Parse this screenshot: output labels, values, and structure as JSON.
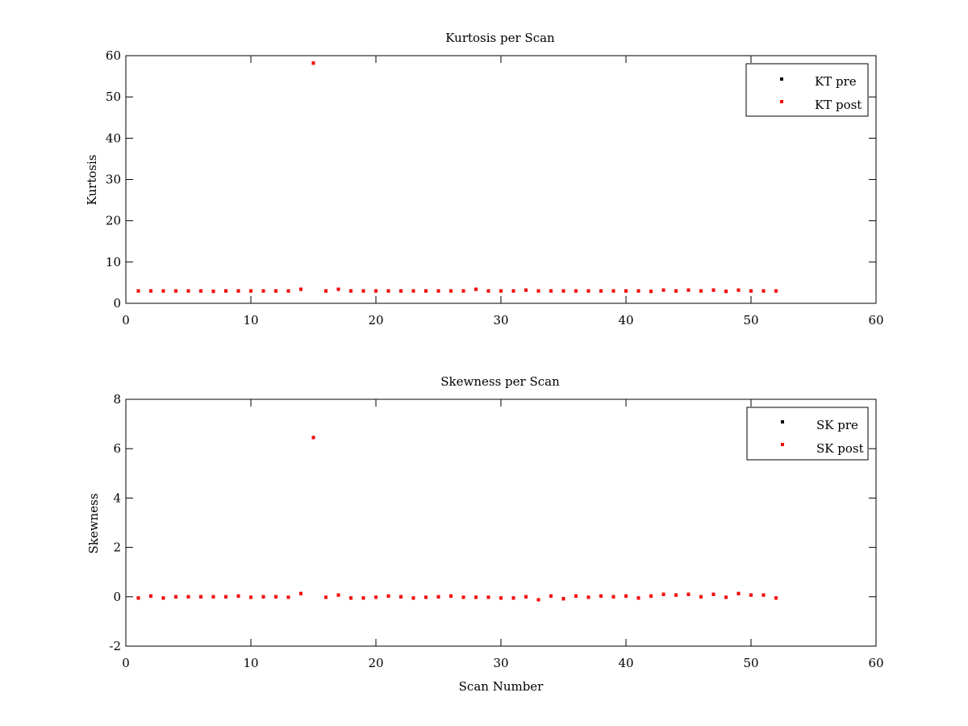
{
  "colors": {
    "pre": "#000000",
    "post": "#ff0000",
    "background": "#ffffff",
    "axes": "#000000"
  },
  "chart_data": [
    {
      "type": "scatter",
      "title": "Kurtosis per Scan",
      "xlabel": "",
      "ylabel": "Kurtosis",
      "xlim": [
        0,
        60
      ],
      "ylim": [
        0,
        60
      ],
      "xticks": [
        0,
        10,
        20,
        30,
        40,
        50,
        60
      ],
      "yticks": [
        0,
        10,
        20,
        30,
        40,
        50,
        60
      ],
      "grid": false,
      "legend_position": "top-right",
      "x": [
        1,
        2,
        3,
        4,
        5,
        6,
        7,
        8,
        9,
        10,
        11,
        12,
        13,
        14,
        15,
        16,
        17,
        18,
        19,
        20,
        21,
        22,
        23,
        24,
        25,
        26,
        27,
        28,
        29,
        30,
        31,
        32,
        33,
        34,
        35,
        36,
        37,
        38,
        39,
        40,
        41,
        42,
        43,
        44,
        45,
        46,
        47,
        48,
        49,
        50,
        51,
        52
      ],
      "series": [
        {
          "name": "KT pre",
          "color": "#000000",
          "values": [
            3.0,
            3.0,
            3.0,
            3.0,
            3.0,
            3.0,
            2.9,
            3.0,
            3.0,
            3.0,
            3.0,
            3.0,
            3.0,
            3.4,
            58.2,
            3.0,
            3.4,
            3.0,
            3.0,
            3.0,
            3.0,
            3.0,
            3.0,
            3.0,
            3.0,
            3.0,
            3.0,
            3.4,
            3.0,
            3.0,
            3.0,
            3.2,
            3.0,
            3.0,
            3.0,
            3.0,
            3.0,
            3.0,
            3.0,
            3.0,
            3.0,
            2.9,
            3.2,
            3.0,
            3.2,
            3.0,
            3.2,
            2.9,
            3.2,
            3.0,
            3.0,
            3.0
          ]
        },
        {
          "name": "KT post",
          "color": "#ff0000",
          "values": [
            3.0,
            3.0,
            3.0,
            3.0,
            3.0,
            3.0,
            2.9,
            3.0,
            3.0,
            3.0,
            3.0,
            3.0,
            3.0,
            3.4,
            58.2,
            3.0,
            3.4,
            3.0,
            3.0,
            3.0,
            3.0,
            3.0,
            3.0,
            3.0,
            3.0,
            3.0,
            3.0,
            3.4,
            3.0,
            3.0,
            3.0,
            3.2,
            3.0,
            3.0,
            3.0,
            3.0,
            3.0,
            3.0,
            3.0,
            3.0,
            3.0,
            2.9,
            3.2,
            3.0,
            3.2,
            3.0,
            3.2,
            2.9,
            3.2,
            3.0,
            3.0,
            3.0
          ]
        }
      ]
    },
    {
      "type": "scatter",
      "title": "Skewness per Scan",
      "xlabel": "Scan Number",
      "ylabel": "Skewness",
      "xlim": [
        0,
        60
      ],
      "ylim": [
        -2,
        8
      ],
      "xticks": [
        0,
        10,
        20,
        30,
        40,
        50,
        60
      ],
      "yticks": [
        -2,
        0,
        2,
        4,
        6,
        8
      ],
      "grid": false,
      "legend_position": "top-right",
      "x": [
        1,
        2,
        3,
        4,
        5,
        6,
        7,
        8,
        9,
        10,
        11,
        12,
        13,
        14,
        15,
        16,
        17,
        18,
        19,
        20,
        21,
        22,
        23,
        24,
        25,
        26,
        27,
        28,
        29,
        30,
        31,
        32,
        33,
        34,
        35,
        36,
        37,
        38,
        39,
        40,
        41,
        42,
        43,
        44,
        45,
        46,
        47,
        48,
        49,
        50,
        51,
        52
      ],
      "series": [
        {
          "name": "SK pre",
          "color": "#000000",
          "values": [
            -0.05,
            0.03,
            -0.05,
            0.0,
            0.0,
            0.0,
            0.0,
            0.0,
            0.03,
            -0.02,
            0.0,
            0.0,
            -0.02,
            0.13,
            6.45,
            -0.02,
            0.07,
            -0.05,
            -0.05,
            -0.02,
            0.03,
            0.0,
            -0.05,
            -0.02,
            0.0,
            0.03,
            -0.02,
            -0.02,
            -0.02,
            -0.05,
            -0.05,
            0.0,
            -0.12,
            0.03,
            -0.08,
            0.03,
            -0.02,
            0.03,
            0.0,
            0.03,
            -0.05,
            0.03,
            0.1,
            0.07,
            0.1,
            0.0,
            0.1,
            -0.02,
            0.13,
            0.07,
            0.07,
            -0.05
          ]
        },
        {
          "name": "SK post",
          "color": "#ff0000",
          "values": [
            -0.05,
            0.03,
            -0.05,
            0.0,
            0.0,
            0.0,
            0.0,
            0.0,
            0.03,
            -0.02,
            0.0,
            0.0,
            -0.02,
            0.13,
            6.45,
            -0.02,
            0.07,
            -0.05,
            -0.05,
            -0.02,
            0.03,
            0.0,
            -0.05,
            -0.02,
            0.0,
            0.03,
            -0.02,
            -0.02,
            -0.02,
            -0.05,
            -0.05,
            0.0,
            -0.12,
            0.03,
            -0.08,
            0.03,
            -0.02,
            0.03,
            0.0,
            0.03,
            -0.05,
            0.03,
            0.1,
            0.07,
            0.1,
            0.0,
            0.1,
            -0.02,
            0.13,
            0.07,
            0.07,
            -0.05
          ]
        }
      ]
    }
  ]
}
